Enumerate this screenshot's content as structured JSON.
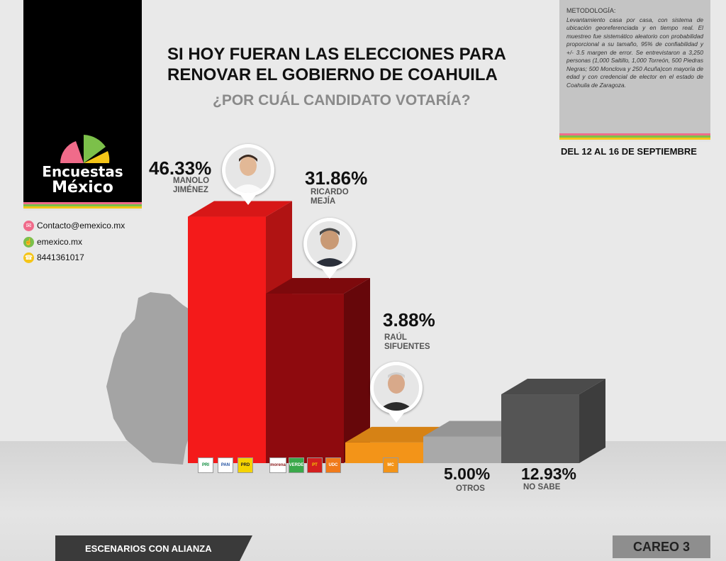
{
  "brand": {
    "logo_line1": "Encuestas",
    "logo_line2": "México",
    "stripe_colors": [
      "#f06b8a",
      "#7cc04a",
      "#f5c518",
      "#e5e5e5"
    ]
  },
  "contact": {
    "email": "Contacto@emexico.mx",
    "website": "emexico.mx",
    "phone": "8441361017"
  },
  "title": "SI HOY FUERAN LAS ELECCIONES PARA RENOVAR EL GOBIERNO DE COAHUILA",
  "subtitle": "¿POR CUÁL CANDIDATO VOTARÍA?",
  "methodology": {
    "heading": "METODOLOGÍA:",
    "text": "Levantamiento casa por casa, con sistema de ubicación georeferenciada y en tiempo real. El muestreo fue sistemático aleatorio con probabilidad proporcional a su tamaño, 95% de confiabilidad y +/- 3.5 margen de error. Se entrevistaron a 3,250 personas (1,000 Saltillo, 1,000 Torreón, 500 Piedras Negras; 500 Monclova y 250 Acuña)con mayoría de edad y con credencial de elector en el estado de Coahuila de Zaragoza."
  },
  "dates": "DEL 12 AL 16 DE SEPTIEMBRE",
  "chart_data": {
    "type": "bar",
    "categories": [
      "MANOLO JIMÉNEZ",
      "RICARDO MEJÍA",
      "RAÚL SIFUENTES",
      "OTROS",
      "NO SABE"
    ],
    "values": [
      46.33,
      31.86,
      3.88,
      5.0,
      12.93
    ],
    "value_labels": [
      "46.33%",
      "31.86%",
      "3.88%",
      "5.00%",
      "12.93%"
    ],
    "name_lines": [
      [
        "MANOLO",
        "JIMÉNEZ"
      ],
      [
        "RICARDO",
        "MEJÍA"
      ],
      [
        "RAÚL",
        "SIFUENTES"
      ],
      [
        "OTROS"
      ],
      [
        "NO SABE"
      ]
    ],
    "colors": [
      "#f41a1a",
      "#8e0a0e",
      "#f39418",
      "#a9a9a9",
      "#555555"
    ],
    "party_logos": [
      [
        "PRI",
        "PAN",
        "PRD"
      ],
      [
        "morena",
        "VERDE",
        "PT",
        "UDC"
      ],
      [
        "MC"
      ],
      [],
      []
    ]
  },
  "footer": {
    "scenario": "ESCENARIOS CON ALIANZA",
    "careo": "CAREO 3"
  }
}
